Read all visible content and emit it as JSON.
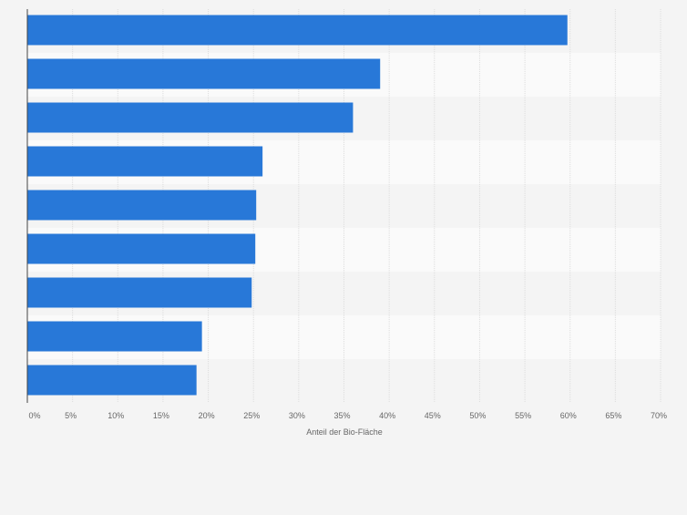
{
  "chart_data": {
    "type": "bar",
    "orientation": "horizontal",
    "title": "",
    "xlabel": "Anteil der Bio-Fläche",
    "ylabel": "",
    "categories": [
      "",
      "",
      "",
      "",
      "",
      "",
      "",
      "",
      ""
    ],
    "values": [
      59.7,
      39.0,
      36.0,
      26.0,
      25.3,
      25.2,
      24.8,
      19.3,
      18.7
    ],
    "xlim": [
      0,
      70
    ],
    "xticks": [
      0,
      5,
      10,
      15,
      20,
      25,
      30,
      35,
      40,
      45,
      50,
      55,
      60,
      65,
      70
    ],
    "xtick_labels": [
      "0%",
      "5%",
      "10%",
      "15%",
      "20%",
      "25%",
      "30%",
      "35%",
      "40%",
      "45%",
      "50%",
      "55%",
      "60%",
      "65%",
      "70%"
    ],
    "grid": true,
    "legend": "none",
    "colors": {
      "bar": "#2878d8",
      "band_even": "#f4f4f4",
      "band_odd": "#fafafa",
      "gridline": "#dddddd",
      "axis": "#444444",
      "tick_text": "#666666"
    }
  }
}
